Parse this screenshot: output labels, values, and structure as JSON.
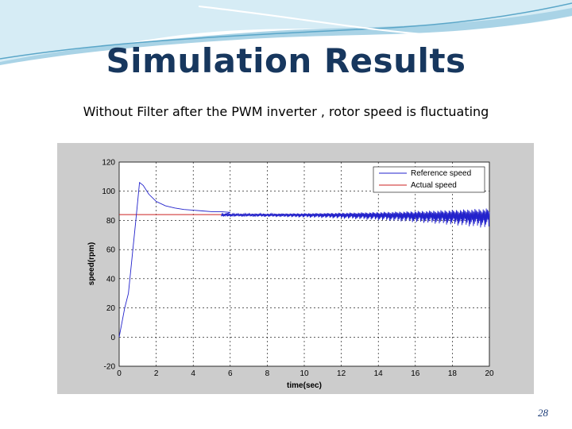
{
  "slide": {
    "title": "Simulation Results",
    "subtitle": "Without Filter after the PWM inverter , rotor speed is fluctuating",
    "page_number": "28"
  },
  "colors": {
    "title": "#17375e",
    "wave_light": "#d6ecf5",
    "wave_mid": "#a9d3e6",
    "wave_dark": "#5aa6c8",
    "figure_bg": "#cccccc",
    "plot_bg": "#ffffff",
    "reference": "#2222cc",
    "actual": "#cc2222"
  },
  "chart_data": {
    "type": "line",
    "title": "",
    "xlabel": "time(sec)",
    "ylabel": "speed(rpm)",
    "xlim": [
      0,
      20
    ],
    "ylim": [
      -20,
      120
    ],
    "xticks": [
      0,
      2,
      4,
      6,
      8,
      10,
      12,
      14,
      16,
      18,
      20
    ],
    "yticks": [
      -20,
      0,
      20,
      40,
      60,
      80,
      100,
      120
    ],
    "grid": true,
    "legend_position": "top-right",
    "series": [
      {
        "name": "Reference speed",
        "color": "#2222cc",
        "x": [
          0,
          0.3,
          0.5,
          0.7,
          0.9,
          1.1,
          1.3,
          1.6,
          2.0,
          2.5,
          3.0,
          3.5,
          4.0,
          4.5,
          5.0,
          5.5,
          6.0
        ],
        "y": [
          0,
          20,
          30,
          55,
          80,
          106,
          104,
          98,
          93,
          90,
          88.5,
          87.5,
          87,
          86.5,
          86,
          86,
          85.5
        ],
        "oscillation": {
          "from": 5.5,
          "to": 20,
          "center": 84,
          "amplitude_start": 1.5,
          "amplitude_end": 10
        }
      },
      {
        "name": "Actual speed",
        "color": "#cc2222",
        "x": [
          0,
          20
        ],
        "y": [
          84,
          84
        ]
      }
    ]
  }
}
